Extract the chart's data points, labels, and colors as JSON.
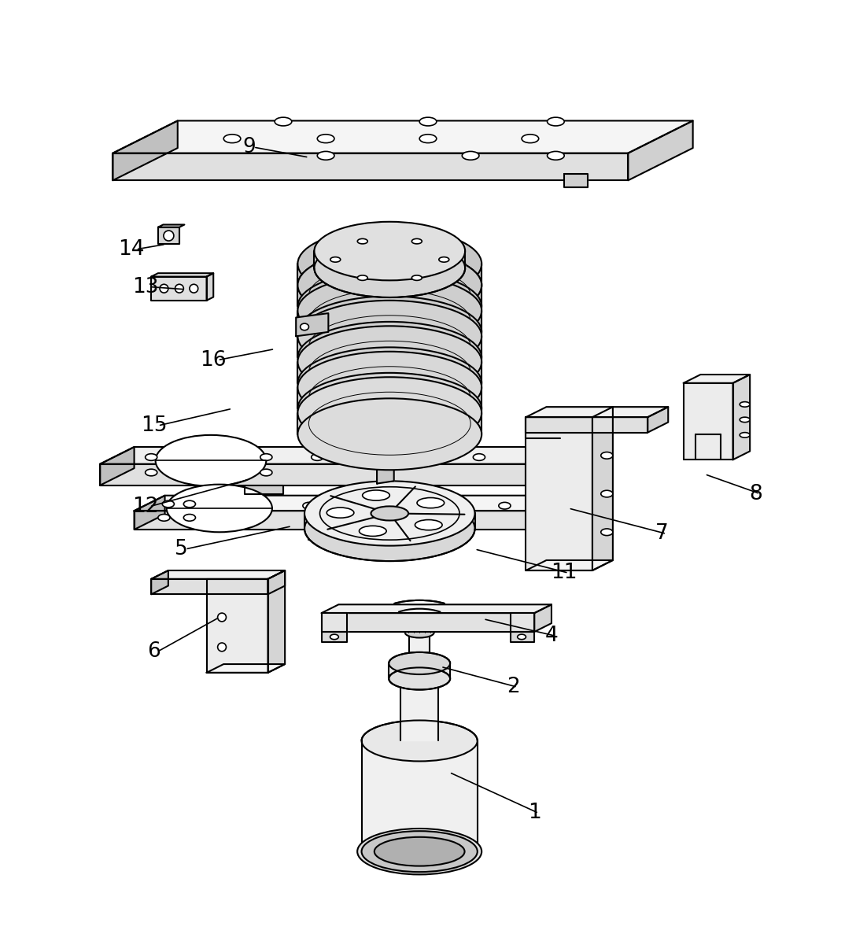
{
  "bg_color": "#ffffff",
  "line_color": "#000000",
  "line_width": 1.5,
  "fig_width": 10.88,
  "fig_height": 12.01
}
